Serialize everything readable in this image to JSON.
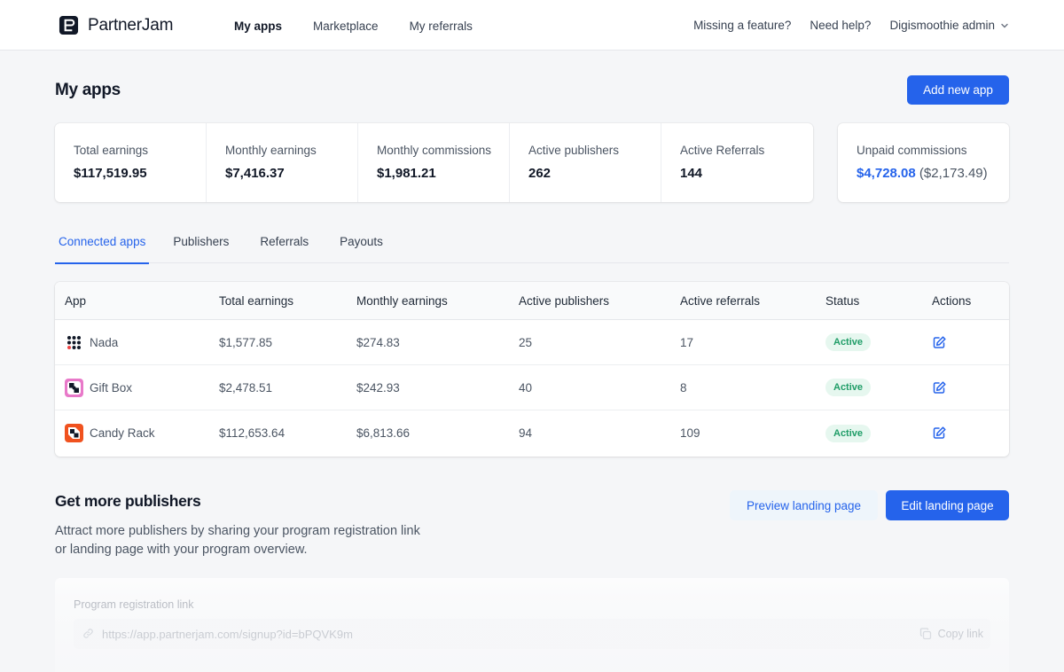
{
  "header": {
    "brand": "PartnerJam",
    "nav": [
      "My apps",
      "Marketplace",
      "My referrals"
    ],
    "missing_feature": "Missing a feature?",
    "need_help": "Need help?",
    "account": "Digismoothie admin"
  },
  "page": {
    "title": "My apps",
    "add_button": "Add new app"
  },
  "stats": [
    {
      "label": "Total earnings",
      "value": "$117,519.95"
    },
    {
      "label": "Monthly earnings",
      "value": "$7,416.37"
    },
    {
      "label": "Monthly commissions",
      "value": "$1,981.21"
    },
    {
      "label": "Active publishers",
      "value": "262"
    },
    {
      "label": "Active Referrals",
      "value": "144"
    }
  ],
  "unpaid": {
    "label": "Unpaid commissions",
    "value": "$4,728.08",
    "secondary": "($2,173.49)"
  },
  "tabs": [
    "Connected apps",
    "Publishers",
    "Referrals",
    "Payouts"
  ],
  "table": {
    "columns": [
      "App",
      "Total earnings",
      "Monthly earnings",
      "Active publishers",
      "Active referrals",
      "Status",
      "Actions"
    ],
    "rows": [
      {
        "app": "Nada",
        "total": "$1,577.85",
        "monthly": "$274.83",
        "publishers": "25",
        "referrals": "17",
        "status": "Active",
        "icon": "nada-grid-icon"
      },
      {
        "app": "Gift Box",
        "total": "$2,478.51",
        "monthly": "$242.93",
        "publishers": "40",
        "referrals": "8",
        "status": "Active",
        "icon": "gift-box-icon"
      },
      {
        "app": "Candy Rack",
        "total": "$112,653.64",
        "monthly": "$6,813.66",
        "publishers": "94",
        "referrals": "109",
        "status": "Active",
        "icon": "candy-rack-icon"
      }
    ]
  },
  "more_publishers": {
    "title": "Get more publishers",
    "description_line1": "Attract more publishers by sharing your program registration link",
    "description_line2": "or landing page with your program overview.",
    "preview_button": "Preview landing page",
    "edit_button": "Edit landing page"
  },
  "registration": {
    "label": "Program registration link",
    "url": "https://app.partnerjam.com/signup?id=bPQVK9m",
    "copy_label": "Copy link"
  },
  "colors": {
    "accent": "#2563eb",
    "active_badge_bg": "#e6f7ef",
    "active_badge_text": "#1f9d67"
  }
}
